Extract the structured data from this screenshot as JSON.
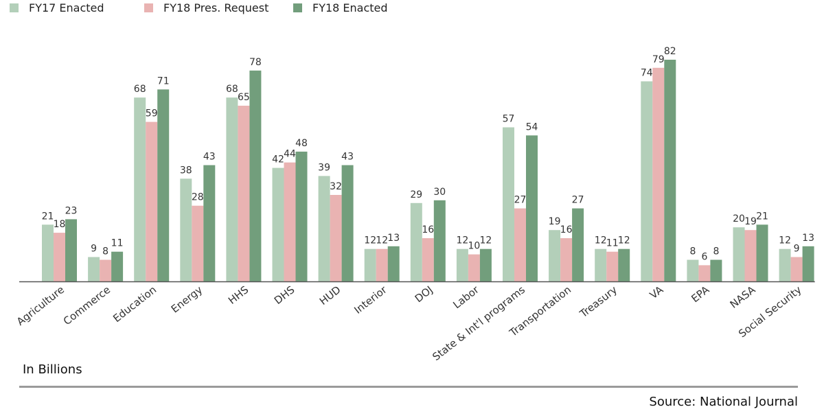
{
  "colors": {
    "fy17": "#b3cfb9",
    "pres": "#e9b3b2",
    "fy18": "#729e7c",
    "axis": "#555555"
  },
  "chart_data": {
    "type": "bar",
    "categories": [
      "Agriculture",
      "Commerce",
      "Education",
      "Energy",
      "HHS",
      "DHS",
      "HUD",
      "Interior",
      "DOJ",
      "Labor",
      "State & Int'l programs",
      "Transportation",
      "Treasury",
      "VA",
      "EPA",
      "NASA",
      "Social Security"
    ],
    "series": [
      {
        "name": "FY17 Enacted",
        "color": "#b3cfb9",
        "values": [
          21,
          9,
          68,
          38,
          68,
          42,
          39,
          12,
          29,
          12,
          57,
          19,
          12,
          74,
          8,
          20,
          12
        ]
      },
      {
        "name": "FY18 Pres. Request",
        "color": "#e9b3b2",
        "values": [
          18,
          8,
          59,
          28,
          65,
          44,
          32,
          12,
          16,
          10,
          27,
          16,
          11,
          79,
          6,
          19,
          9
        ]
      },
      {
        "name": "FY18 Enacted",
        "color": "#729e7c",
        "values": [
          23,
          11,
          71,
          43,
          78,
          48,
          43,
          13,
          30,
          12,
          54,
          27,
          12,
          82,
          8,
          21,
          13
        ]
      }
    ],
    "ylim": [
      0,
      82
    ],
    "legend": "top-left",
    "grid": false,
    "unit_note": "In Billions",
    "source": "Source: National Journal"
  }
}
